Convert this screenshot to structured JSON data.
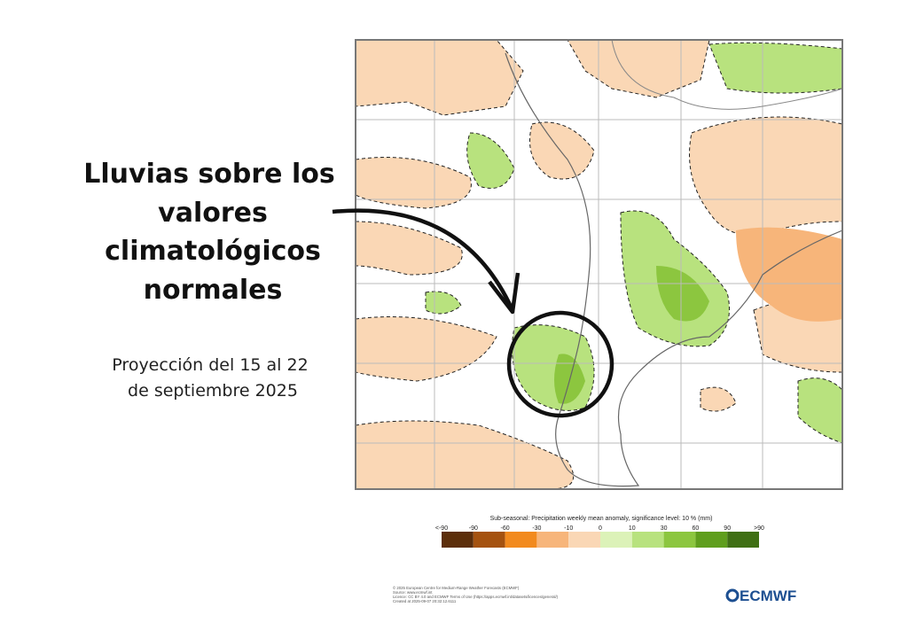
{
  "headline": [
    "Lluvias sobre los",
    "valores",
    "climatológicos",
    "normales"
  ],
  "subtitle": [
    "Proyección del 15 al 22",
    "de septiembre 2025"
  ],
  "legend": {
    "title": "Sub-seasonal: Precipitation weekly mean anomaly, significance level: 10 % (mm)",
    "labels": [
      "<-90",
      "-90",
      "-60",
      "-30",
      "-10",
      "0",
      "10",
      "30",
      "60",
      "90",
      ">90"
    ],
    "colors": [
      "#5c2e0a",
      "#a5520f",
      "#f28a1e",
      "#f7b57a",
      "#fad7b5",
      "#dcf2b8",
      "#b8e27e",
      "#8cc63f",
      "#5f9e1d",
      "#3f6f14"
    ]
  },
  "credits": [
    "© 2025 European Centre for Medium-Range Weather Forecasts (ECMWF)",
    "Source: www.ecmwf.int",
    "Licence: CC BY 4.0 and ECMWF Terms of Use (https://apps.ecmwf.int/datasets/licences/general/)",
    "Created at 2025-09-07 20:32:12.6111"
  ],
  "logo": "ECMWF"
}
